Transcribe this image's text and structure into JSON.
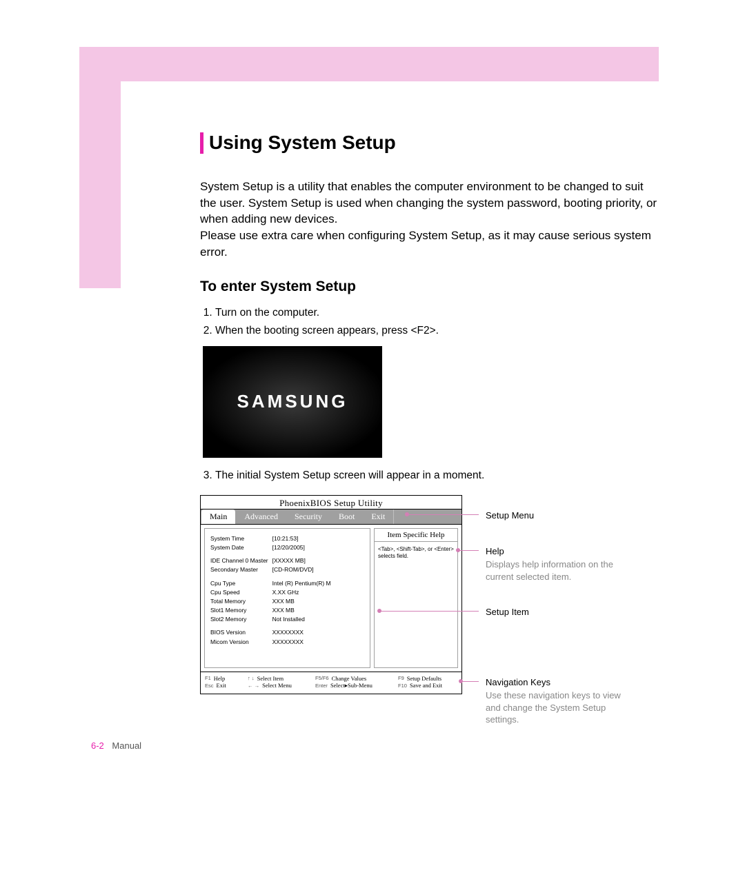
{
  "page": {
    "title": "Using System Setup",
    "intro": "System Setup is a utility that enables the computer environment to be changed to suit the user. System Setup is used when changing the system password, booting priority, or when adding new devices.\nPlease use extra care when configuring System Setup, as it may cause serious system error.",
    "subhead": "To enter System Setup",
    "step1": "Turn on the computer.",
    "step2": "When the booting screen appears, press <F2>.",
    "step3": "The initial System Setup screen will appear in a moment.",
    "splash_text": "SAMSUNG",
    "footer_page": "6-2",
    "footer_label": "Manual"
  },
  "bios": {
    "window_title": "PhoenixBIOS  Setup Utility",
    "tabs": [
      "Main",
      "Advanced",
      "Security",
      "Boot",
      "Exit"
    ],
    "rows": [
      [
        "System Time",
        "[10:21:53]"
      ],
      [
        "System Date",
        "[12/20/2005]"
      ],
      [
        "",
        ""
      ],
      [
        "IDE Channel 0 Master",
        "[XXXXX MB]"
      ],
      [
        "Secondary Master",
        "[CD-ROM/DVD]"
      ],
      [
        "",
        ""
      ],
      [
        "Cpu Type",
        "Intel (R) Pentium(R) M"
      ],
      [
        "Cpu Speed",
        "X.XX GHz"
      ],
      [
        "Total Memory",
        "XXX MB"
      ],
      [
        "Slot1 Memory",
        "XXX MB"
      ],
      [
        "Slot2 Memory",
        "Not Installed"
      ],
      [
        "",
        ""
      ],
      [
        "BIOS Version",
        "XXXXXXXX"
      ],
      [
        "Micom Version",
        "XXXXXXXX"
      ]
    ],
    "help_title": "Item Specific Help",
    "help_body": "<Tab>, <Shift-Tab>, or <Enter> selects field.",
    "nav": {
      "r1": [
        {
          "k": "F1",
          "l": "Help"
        },
        {
          "k": "↑ ↓",
          "l": "Select Item"
        },
        {
          "k": "F5/F6",
          "l": "Change Values"
        },
        {
          "k": "F9",
          "l": "Setup Defaults"
        }
      ],
      "r2": [
        {
          "k": "Esc",
          "l": "Exit"
        },
        {
          "k": "← →",
          "l": "Select Menu"
        },
        {
          "k": "Enter",
          "l": "Select▸Sub-Menu"
        },
        {
          "k": "F10",
          "l": "Save and Exit"
        }
      ]
    }
  },
  "callouts": {
    "menu": "Setup Menu",
    "help": "Help",
    "help_desc": "Displays help information on the current selected item.",
    "item": "Setup Item",
    "nav": "Navigation Keys",
    "nav_desc": "Use these navigation keys to view and change the System Setup settings."
  },
  "colors": {
    "accent": "#e61eaa",
    "pink_frame": "#f4c6e5",
    "callout_line": "#d47fb5",
    "grey_text": "#888888",
    "bios_tab_bg": "#a0a0a0"
  }
}
